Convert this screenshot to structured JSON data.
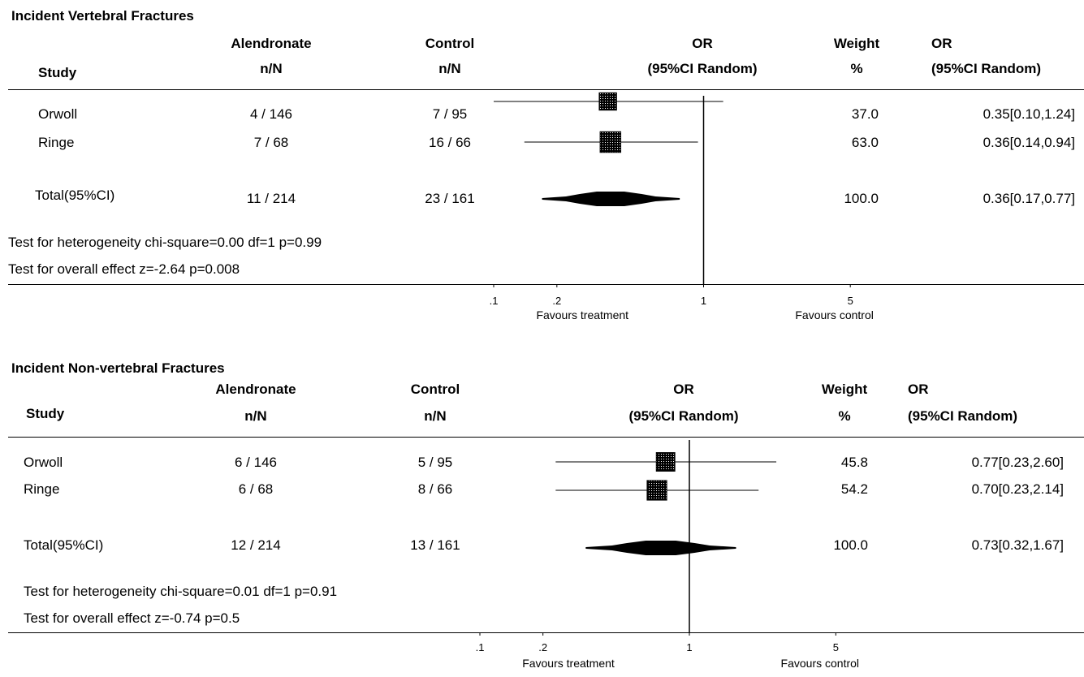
{
  "colors": {
    "ink": "#000000",
    "background": "#ffffff"
  },
  "chart_data": [
    {
      "type": "forest",
      "title": "Incident Vertebral Fractures",
      "columns": {
        "study": "Study",
        "treat_line1": "Alendronate",
        "treat_line2": "n/N",
        "ctrl_line1": "Control",
        "ctrl_line2": "n/N",
        "or_line1": "OR",
        "or_line2": "(95%CI Random)",
        "weight_line1": "Weight",
        "weight_line2": "%",
        "ortext_line1": "OR",
        "ortext_line2": "(95%CI Random)"
      },
      "rows": [
        {
          "study": "Orwoll",
          "treat": "4 / 146",
          "ctrl": "7 / 95",
          "or": 0.35,
          "lo": 0.1,
          "hi": 1.24,
          "weight": 37.0,
          "weight_text": "37.0",
          "or_text": "0.35[0.10,1.24]"
        },
        {
          "study": "Ringe",
          "treat": "7 / 68",
          "ctrl": "16 / 66",
          "or": 0.36,
          "lo": 0.14,
          "hi": 0.94,
          "weight": 63.0,
          "weight_text": "63.0",
          "or_text": "0.36[0.14,0.94]"
        }
      ],
      "total": {
        "study": "Total(95%CI)",
        "treat": "11 / 214",
        "ctrl": "23 / 161",
        "or": 0.36,
        "lo": 0.17,
        "hi": 0.77,
        "weight_text": "100.0",
        "or_text": "0.36[0.17,0.77]"
      },
      "heterogeneity": "Test for heterogeneity chi-square=0.00  df=1  p=0.99",
      "overall": "Test for overall effect  z=-2.64  p=0.008",
      "x_scale": "log",
      "xlim": [
        0.1,
        10
      ],
      "ticks": [
        {
          "v": 0.1,
          "label": ".1"
        },
        {
          "v": 0.2,
          "label": ".2"
        },
        {
          "v": 1,
          "label": "1"
        },
        {
          "v": 5,
          "label": "5"
        }
      ],
      "favours_left": "Favours treatment",
      "favours_right": "Favours control"
    },
    {
      "type": "forest",
      "title": "Incident Non-vertebral Fractures",
      "columns": {
        "study": "Study",
        "treat_line1": "Alendronate",
        "treat_line2": "n/N",
        "ctrl_line1": "Control",
        "ctrl_line2": "n/N",
        "or_line1": "OR",
        "or_line2": "(95%CI Random)",
        "weight_line1": "Weight",
        "weight_line2": "%",
        "ortext_line1": "OR",
        "ortext_line2": "(95%CI Random)"
      },
      "rows": [
        {
          "study": "Orwoll",
          "treat": "6 / 146",
          "ctrl": "5 / 95",
          "or": 0.77,
          "lo": 0.23,
          "hi": 2.6,
          "weight": 45.8,
          "weight_text": "45.8",
          "or_text": "0.77[0.23,2.60]"
        },
        {
          "study": "Ringe",
          "treat": "6 / 68",
          "ctrl": "8 / 66",
          "or": 0.7,
          "lo": 0.23,
          "hi": 2.14,
          "weight": 54.2,
          "weight_text": "54.2",
          "or_text": "0.70[0.23,2.14]"
        }
      ],
      "total": {
        "study": "Total(95%CI)",
        "treat": "12 / 214",
        "ctrl": "13 / 161",
        "or": 0.73,
        "lo": 0.32,
        "hi": 1.67,
        "weight_text": "100.0",
        "or_text": "0.73[0.32,1.67]"
      },
      "heterogeneity": "Test for heterogeneity chi-square=0.01  df=1  p=0.91",
      "overall": "Test for overall effect  z=-0.74  p=0.5",
      "x_scale": "log",
      "xlim": [
        0.1,
        10
      ],
      "ticks": [
        {
          "v": 0.1,
          "label": ".1"
        },
        {
          "v": 0.2,
          "label": ".2"
        },
        {
          "v": 1,
          "label": "1"
        },
        {
          "v": 5,
          "label": "5"
        }
      ],
      "favours_left": "Favours treatment",
      "favours_right": "Favours control"
    }
  ]
}
